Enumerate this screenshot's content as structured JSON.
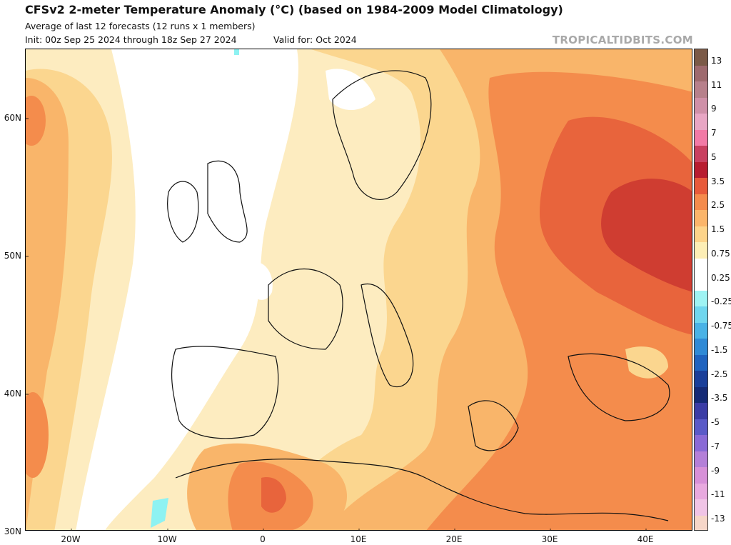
{
  "header": {
    "title": "CFSv2 2-meter Temperature Anomaly (°C) (based on 1984-2009 Model Climatology)",
    "subtitle": "Average of last 12 forecasts (12 runs x 1 members)",
    "init": "Init: 00z Sep 25 2024 through 18z Sep 27 2024",
    "valid": "Valid for: Oct 2024",
    "brand": "TROPICALTIDBITS.COM"
  },
  "axes": {
    "lat_labels": [
      "60N",
      "50N",
      "40N",
      "30N"
    ],
    "lon_labels": [
      "20W",
      "10W",
      "0",
      "10E",
      "20E",
      "30E",
      "40E"
    ]
  },
  "colorbar": {
    "labels": [
      "13",
      "11",
      "9",
      "7",
      "5",
      "3.5",
      "2.5",
      "1.5",
      "0.75",
      "0.25",
      "-0.25",
      "-0.75",
      "-1.5",
      "-2.5",
      "-3.5",
      "-5",
      "-7",
      "-9",
      "-11",
      "-13"
    ],
    "colors": [
      "#7b5a47",
      "#9e6a6e",
      "#b7808b",
      "#cf90a8",
      "#e8a6c4",
      "#f27aa6",
      "#c94060",
      "#b81c30",
      "#e85a3a",
      "#f58b4c",
      "#fbb56a",
      "#fdd48a",
      "#fdeeb5",
      "#ffffff",
      "#ffffff",
      "#9ef3f3",
      "#6fd6ee",
      "#49b2e6",
      "#2f8ad6",
      "#1f63bf",
      "#1a3f9a",
      "#152a76",
      "#3b3ca6",
      "#5a5ac8",
      "#8a6ad6",
      "#b47fd8",
      "#d790d8",
      "#e8a9df",
      "#f0c4e6",
      "#f6d6c8"
    ]
  },
  "map": {
    "region": "Europe, North Africa and the eastern North Atlantic",
    "colors": {
      "ocean_light": "#fdecc0",
      "weak_warm": "#fbd68f",
      "warm": "#f9b56a",
      "warmer": "#f48c4c",
      "hot": "#e8643c",
      "hotter": "#cf3d31",
      "cool_spot": "#8ef2f2",
      "neutral": "#ffffff"
    }
  }
}
